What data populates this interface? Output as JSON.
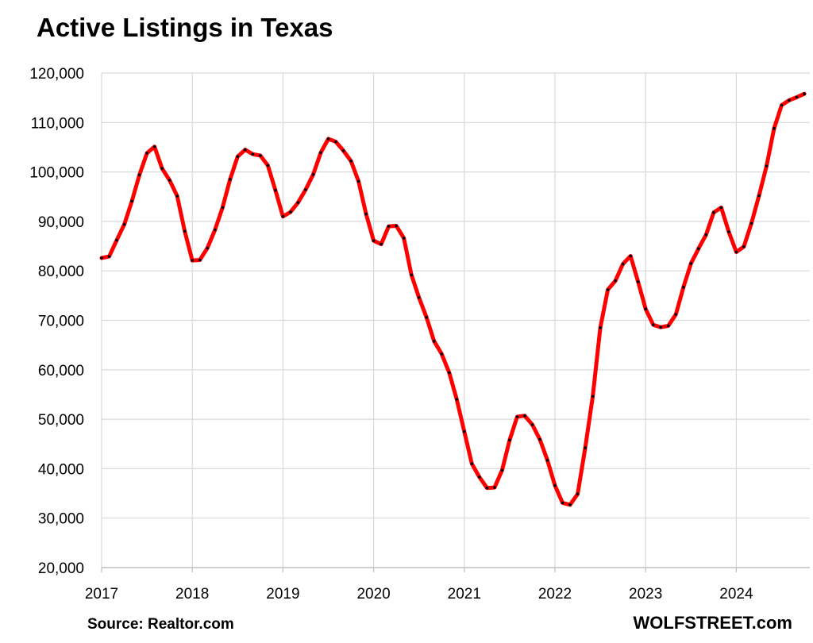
{
  "chart_data": {
    "type": "line",
    "title": "Active Listings in Texas",
    "xlabel": "",
    "ylabel": "",
    "ylim": [
      20000,
      120000
    ],
    "xlim": [
      2017,
      2024.833
    ],
    "yticks": [
      {
        "value": 20000,
        "label": "20,000"
      },
      {
        "value": 30000,
        "label": "30,000"
      },
      {
        "value": 40000,
        "label": "40,000"
      },
      {
        "value": 50000,
        "label": "50,000"
      },
      {
        "value": 60000,
        "label": "60,000"
      },
      {
        "value": 70000,
        "label": "70,000"
      },
      {
        "value": 80000,
        "label": "80,000"
      },
      {
        "value": 90000,
        "label": "90,000"
      },
      {
        "value": 100000,
        "label": "100,000"
      },
      {
        "value": 110000,
        "label": "110,000"
      },
      {
        "value": 120000,
        "label": "120,000"
      }
    ],
    "xticks": [
      {
        "value": 2017,
        "label": "2017"
      },
      {
        "value": 2018,
        "label": "2018"
      },
      {
        "value": 2019,
        "label": "2019"
      },
      {
        "value": 2020,
        "label": "2020"
      },
      {
        "value": 2021,
        "label": "2021"
      },
      {
        "value": 2022,
        "label": "2022"
      },
      {
        "value": 2023,
        "label": "2023"
      },
      {
        "value": 2024,
        "label": "2024"
      }
    ],
    "grid": true,
    "legend": "none",
    "series": [
      {
        "name": "Active Listings",
        "color": "#ff0000",
        "marker_color": "#000000",
        "start_year": 2017,
        "start_month": 1,
        "values": [
          82600,
          82900,
          86200,
          89400,
          94100,
          99400,
          103800,
          105100,
          100700,
          98300,
          95100,
          88000,
          82100,
          82200,
          84600,
          88300,
          92800,
          98500,
          103100,
          104500,
          103600,
          103300,
          101300,
          96300,
          91000,
          91900,
          93800,
          96400,
          99500,
          103900,
          106700,
          106100,
          104300,
          102200,
          98100,
          91500,
          86100,
          85400,
          89000,
          89100,
          86600,
          79200,
          74600,
          70600,
          65800,
          63200,
          59400,
          54000,
          47500,
          41000,
          38300,
          36100,
          36200,
          39700,
          45800,
          50500,
          50700,
          48900,
          45900,
          41700,
          36600,
          33100,
          32700,
          34900,
          44200,
          54600,
          68500,
          76200,
          78000,
          81400,
          83000,
          77800,
          72300,
          69100,
          68600,
          68900,
          71200,
          76700,
          81500,
          84500,
          87300,
          91800,
          92800,
          87900,
          83800,
          84900,
          89600,
          95200,
          101200,
          108800,
          113500,
          114500,
          115100,
          115800
        ]
      }
    ]
  },
  "footer": {
    "source": "Source: Realtor.com",
    "brand": "WOLFSTREET.com"
  }
}
